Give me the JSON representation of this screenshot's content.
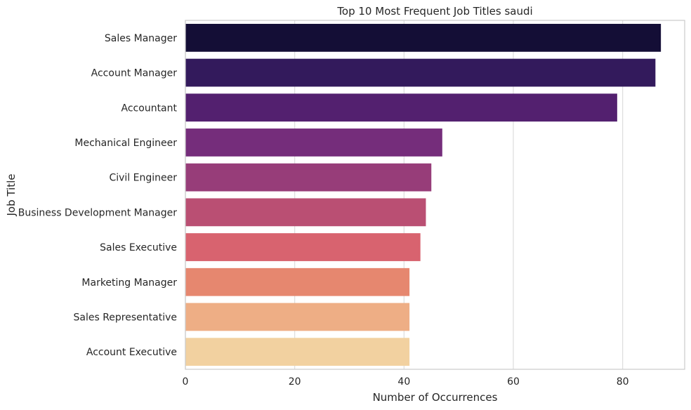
{
  "chart_data": {
    "type": "bar",
    "orientation": "horizontal",
    "title": "Top 10 Most Frequent Job Titles saudi",
    "xlabel": "Number of Occurrences",
    "ylabel": "Job Title",
    "categories": [
      "Sales Manager",
      "Account Manager",
      "Accountant",
      "Mechanical Engineer",
      "Civil Engineer",
      "Business Development Manager",
      "Sales Executive",
      "Marketing Manager",
      "Sales Representative",
      "Account Executive"
    ],
    "values": [
      87,
      86,
      79,
      47,
      45,
      44,
      43,
      41,
      41,
      41
    ],
    "xlim": [
      0,
      91.35
    ],
    "xticks": [
      0,
      20,
      40,
      60,
      80
    ],
    "grid": true,
    "legend": "none",
    "colors": [
      "#140e36",
      "#331a5c",
      "#53206f",
      "#752d7b",
      "#973d79",
      "#ba4f73",
      "#d8636f",
      "#e6876f",
      "#eeae85",
      "#f2d1a0"
    ]
  }
}
